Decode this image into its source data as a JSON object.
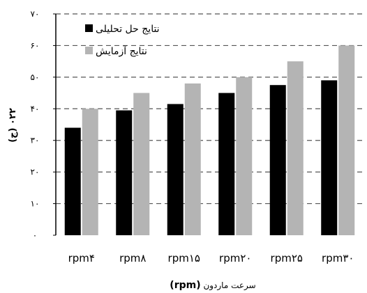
{
  "chart_data": {
    "type": "bar",
    "categories": [
      "rpm۴",
      "rpm۸",
      "rpm۱۵",
      "rpm۲۰",
      "rpm۲۵",
      "rpm۳۰"
    ],
    "series": [
      {
        "name": "نتایج حل تحلیلی",
        "color": "#000000",
        "values": [
          34,
          39.5,
          41.5,
          45,
          47.5,
          49
        ]
      },
      {
        "name": "نتایج آزمایش",
        "color": "#b4b4b4",
        "values": [
          40,
          45,
          48,
          50,
          55,
          60
        ]
      }
    ],
    "ylim": [
      0,
      70
    ],
    "yticks": [
      "۰",
      "۱۰",
      "۲۰",
      "۳۰",
      "۴۰",
      "۵۰",
      "۶۰",
      "۷۰"
    ],
    "ylabel": "(ج) ۰۲۲",
    "xlabel_text": "سرعت ماردون",
    "xlabel_unit": "(rpm)",
    "legend_position": "top-left",
    "grid": "horizontal-dashed"
  }
}
